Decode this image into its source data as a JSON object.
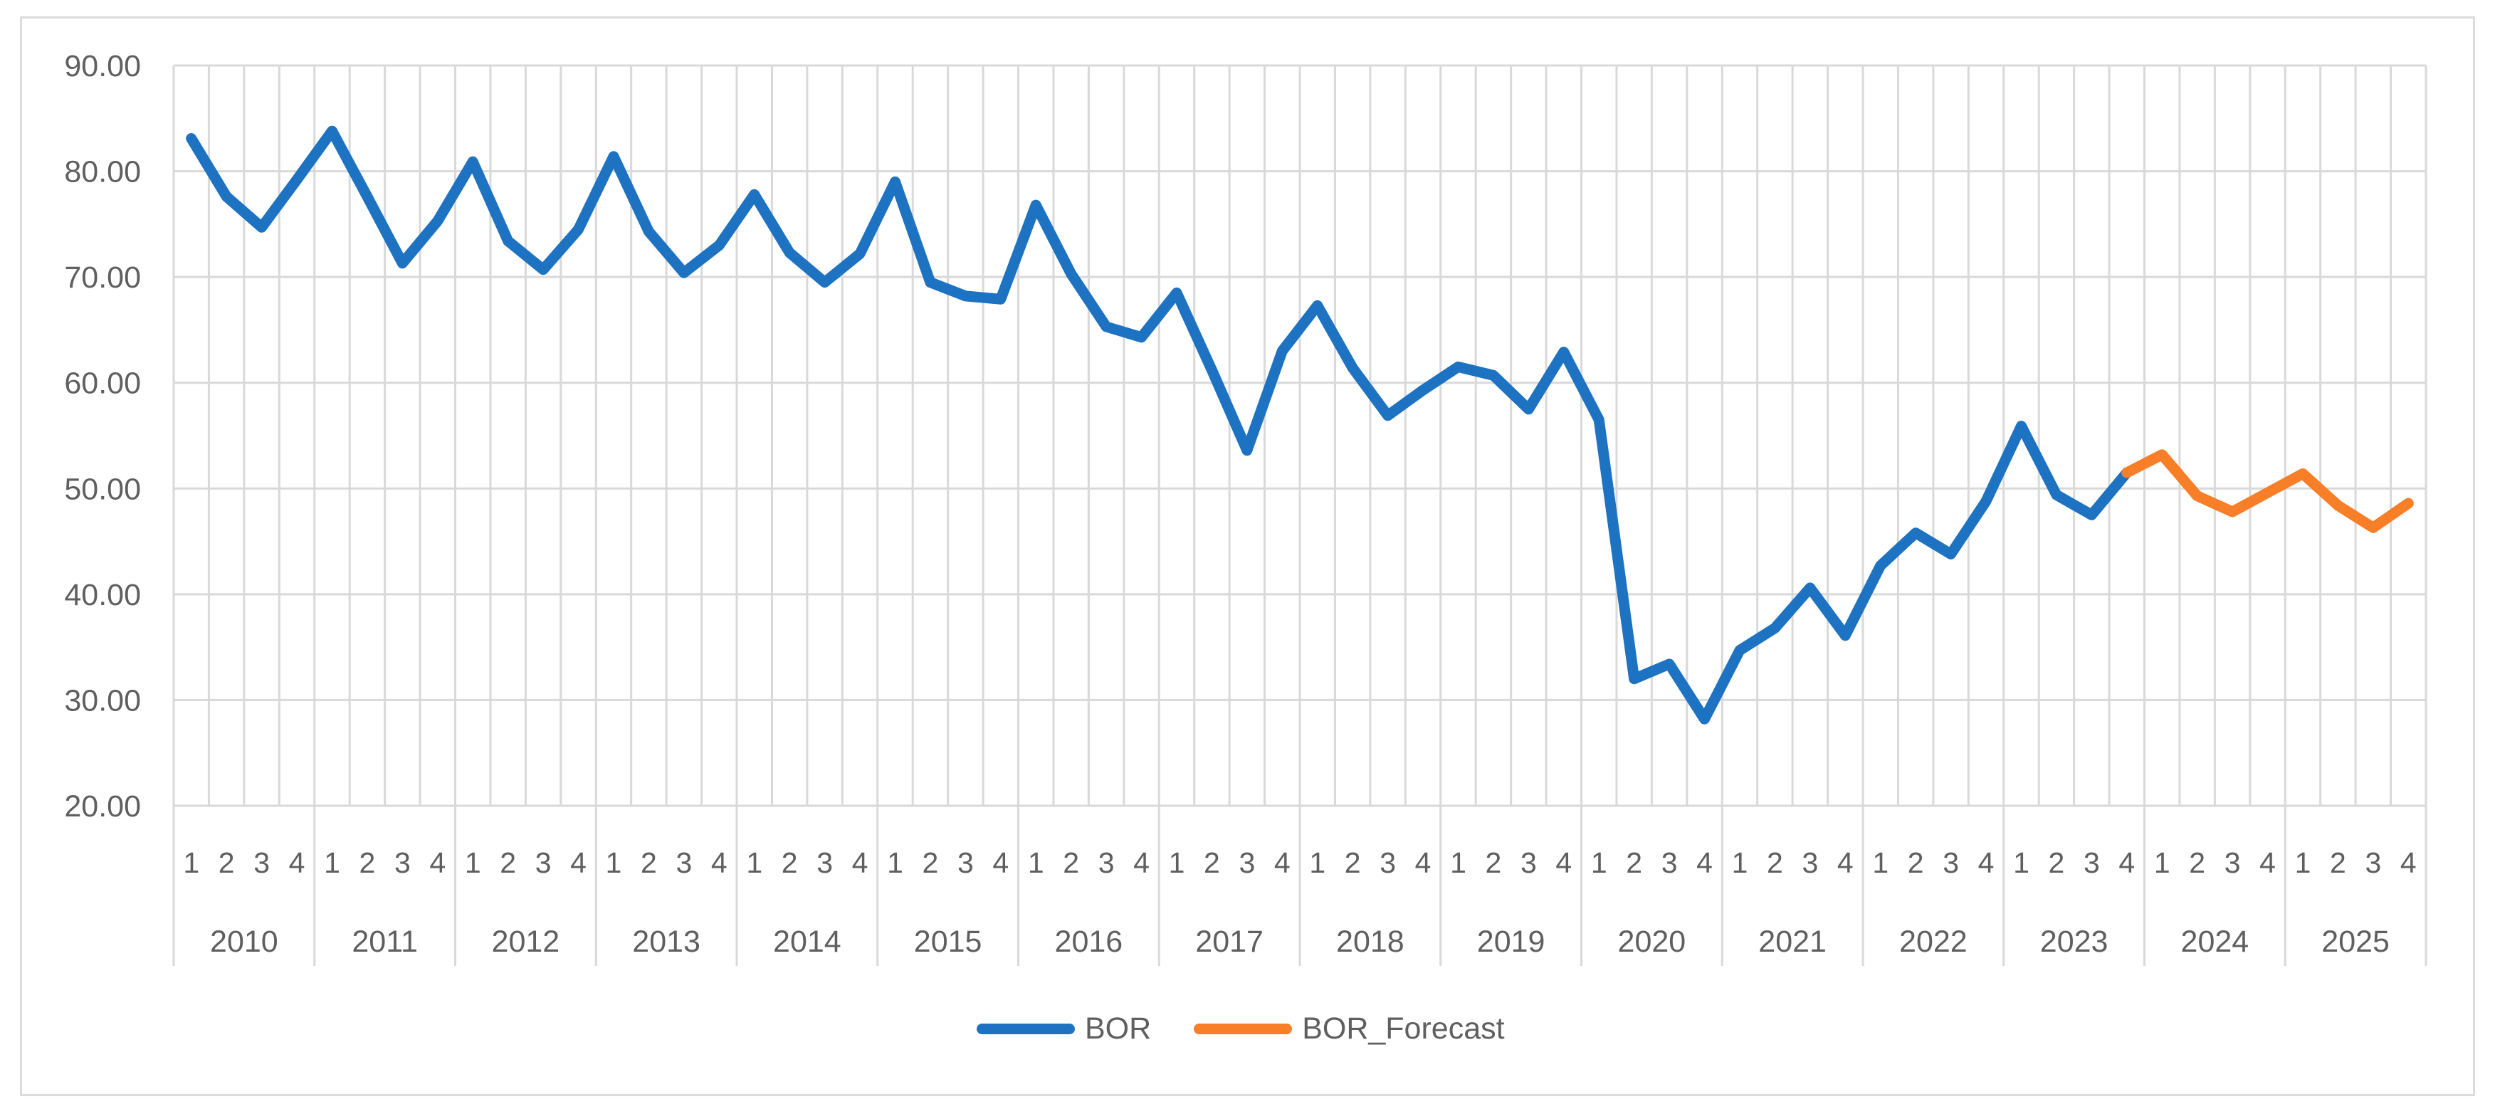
{
  "chart_data": {
    "type": "line",
    "title": "",
    "xlabel": "",
    "ylabel": "",
    "grid": true,
    "legend_position": "bottom",
    "x_axis": {
      "tier1_quarter_labels": [
        "1",
        "2",
        "3",
        "4"
      ],
      "tier2_years": [
        "2010",
        "2011",
        "2012",
        "2013",
        "2014",
        "2015",
        "2016",
        "2017",
        "2018",
        "2019",
        "2020",
        "2021",
        "2022",
        "2023",
        "2024",
        "2025"
      ],
      "points_per_year": 4
    },
    "y_axis": {
      "min": 20,
      "max": 90,
      "step": 10,
      "tick_labels": [
        "90.00",
        "80.00",
        "70.00",
        "60.00",
        "50.00",
        "40.00",
        "30.00",
        "20.00"
      ]
    },
    "series": [
      {
        "name": "BOR",
        "color": "#1E72C2",
        "start_index": 0,
        "values": [
          83.1,
          77.6,
          74.7,
          79.2,
          83.8,
          77.6,
          71.3,
          75.3,
          80.9,
          73.4,
          70.7,
          74.5,
          81.4,
          74.3,
          70.4,
          73.0,
          77.8,
          72.3,
          69.5,
          72.2,
          79.0,
          69.5,
          68.2,
          67.9,
          76.8,
          70.3,
          65.3,
          64.3,
          68.5,
          61.2,
          53.6,
          63.0,
          67.3,
          61.4,
          56.9,
          59.3,
          61.5,
          60.7,
          57.5,
          62.9,
          56.5,
          32.0,
          33.4,
          28.2,
          34.7,
          36.8,
          40.6,
          36.1,
          42.7,
          45.8,
          43.8,
          48.8,
          55.9,
          49.4,
          47.5,
          51.5
        ]
      },
      {
        "name": "BOR_Forecast",
        "color": "#F87E28",
        "start_index": 55,
        "values": [
          51.5,
          53.2,
          49.3,
          47.8,
          49.6,
          51.4,
          48.4,
          46.3,
          48.6
        ]
      }
    ]
  },
  "legend": {
    "items": [
      {
        "label": "BOR",
        "color": "#1E72C2"
      },
      {
        "label": "BOR_Forecast",
        "color": "#F87E28"
      }
    ]
  },
  "colors": {
    "text": "#5F5F5F",
    "gridline": "#D9D9D9",
    "frame": "#DCDCDC",
    "background": "#FFFFFF"
  }
}
